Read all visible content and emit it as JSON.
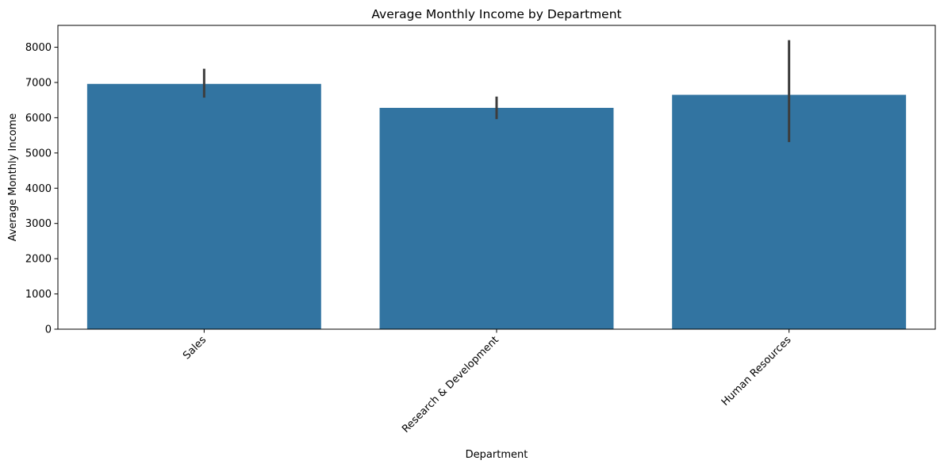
{
  "chart_data": {
    "type": "bar",
    "title": "Average Monthly Income by Department",
    "xlabel": "Department",
    "ylabel": "Average Monthly Income",
    "categories": [
      "Sales",
      "Research & Development",
      "Human Resources"
    ],
    "values": [
      6960,
      6280,
      6650
    ],
    "error_bars": [
      [
        6570,
        7390
      ],
      [
        5960,
        6600
      ],
      [
        5310,
        8200
      ]
    ],
    "ylim": [
      0,
      8620
    ],
    "yticks": [
      0,
      1000,
      2000,
      3000,
      4000,
      5000,
      6000,
      7000,
      8000
    ],
    "bar_color": "#3274a1",
    "error_color": "#3d3d3d",
    "grid": false,
    "x_tick_rotation": -45
  }
}
